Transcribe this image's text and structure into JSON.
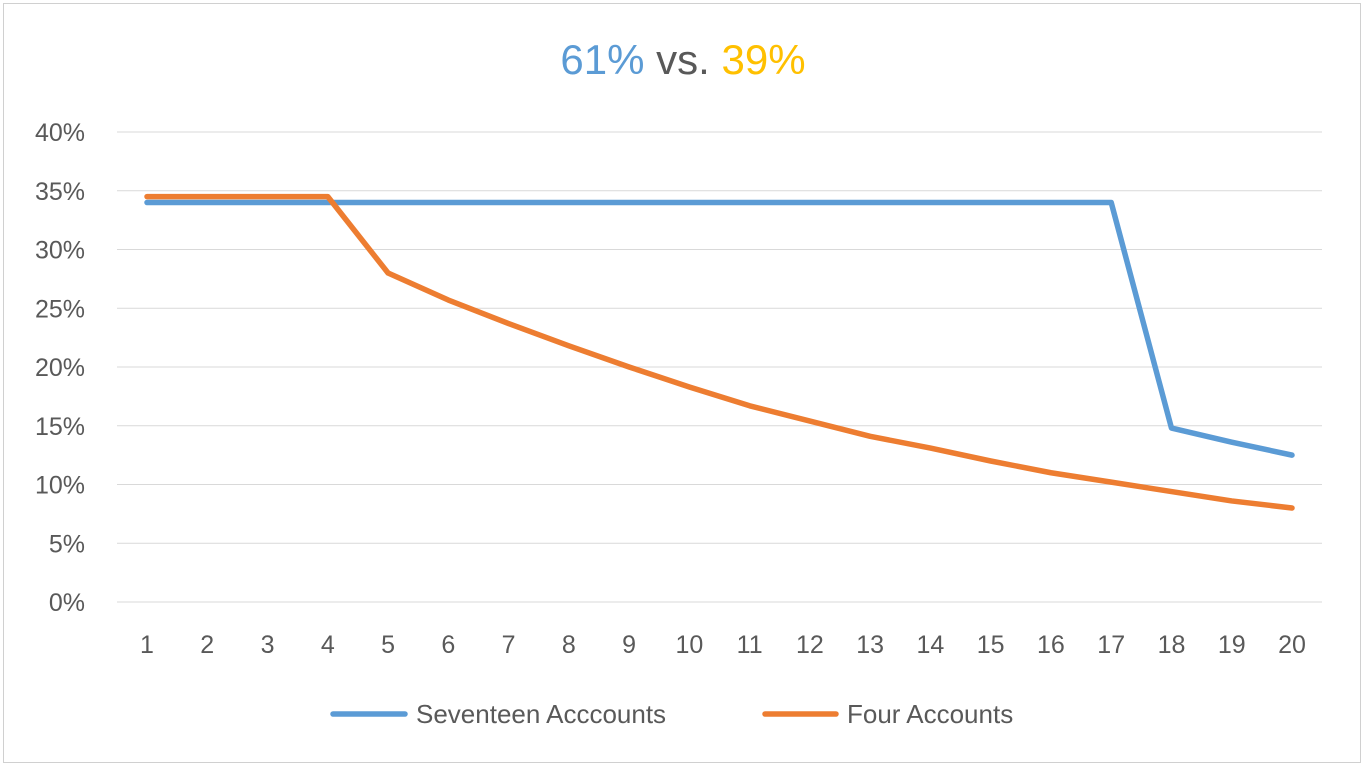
{
  "chart_data": {
    "type": "line",
    "title": {
      "part1": "61%",
      "part2": "vs.",
      "part3": "39%"
    },
    "title_colors": {
      "part1": "#5b9bd5",
      "part2": "#595959",
      "part3": "#ffc000"
    },
    "x": [
      1,
      2,
      3,
      4,
      5,
      6,
      7,
      8,
      9,
      10,
      11,
      12,
      13,
      14,
      15,
      16,
      17,
      18,
      19,
      20
    ],
    "ylim": [
      0,
      0.4
    ],
    "y_ticks": [
      {
        "value": 0.0,
        "label": "0%"
      },
      {
        "value": 0.05,
        "label": "5%"
      },
      {
        "value": 0.1,
        "label": "10%"
      },
      {
        "value": 0.15,
        "label": "15%"
      },
      {
        "value": 0.2,
        "label": "20%"
      },
      {
        "value": 0.25,
        "label": "25%"
      },
      {
        "value": 0.3,
        "label": "30%"
      },
      {
        "value": 0.35,
        "label": "35%"
      },
      {
        "value": 0.4,
        "label": "40%"
      }
    ],
    "grid": true,
    "legend_position": "bottom",
    "series": [
      {
        "name": "Seventeen Acccounts",
        "color": "#5b9bd5",
        "values": [
          0.34,
          0.34,
          0.34,
          0.34,
          0.34,
          0.34,
          0.34,
          0.34,
          0.34,
          0.34,
          0.34,
          0.34,
          0.34,
          0.34,
          0.34,
          0.34,
          0.34,
          0.148,
          0.136,
          0.125
        ]
      },
      {
        "name": "Four Accounts",
        "color": "#ed7d31",
        "values": [
          0.345,
          0.345,
          0.345,
          0.345,
          0.28,
          0.257,
          0.237,
          0.218,
          0.2,
          0.183,
          0.167,
          0.154,
          0.141,
          0.131,
          0.12,
          0.11,
          0.102,
          0.094,
          0.086,
          0.08
        ]
      }
    ]
  }
}
